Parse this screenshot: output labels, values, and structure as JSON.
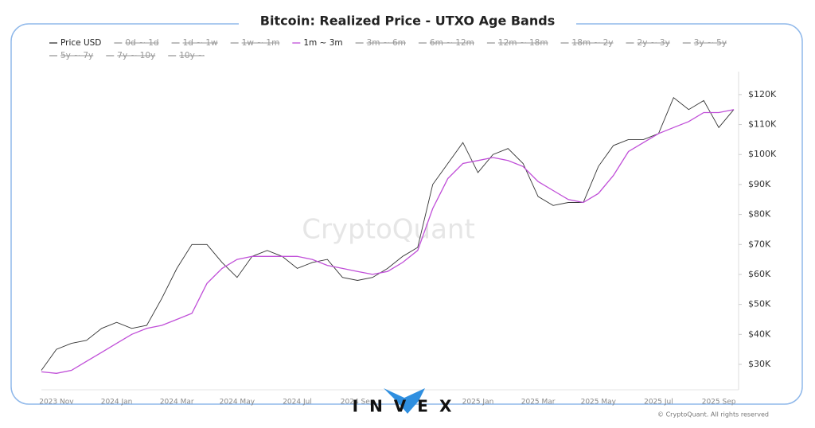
{
  "chart_data": {
    "type": "line",
    "title": "Bitcoin: Realized Price - UTXO Age Bands",
    "watermark": "CryptoQuant",
    "logo": "INVEX",
    "copyright": "© CryptoQuant. All rights reserved",
    "categories": [
      null,
      "2023 Nov",
      null,
      null,
      null,
      "2024 Jan",
      null,
      null,
      null,
      "2024 Mar",
      null,
      null,
      null,
      "2024 May",
      null,
      null,
      null,
      "2024 Jul",
      null,
      null,
      null,
      "2024 Sep",
      null,
      null,
      null,
      null,
      null,
      null,
      null,
      "2025 Jan",
      null,
      null,
      null,
      "2025 Mar",
      null,
      null,
      null,
      "2025 May",
      null,
      null,
      null,
      "2025 Jul",
      null,
      null,
      null,
      "2025 Sep",
      null
    ],
    "series": [
      {
        "name": "Price USD",
        "color": "#333333",
        "visible": true,
        "values": [
          28000,
          35000,
          37000,
          38000,
          42000,
          44000,
          42000,
          43000,
          52000,
          62000,
          70000,
          70000,
          64000,
          59000,
          66000,
          68000,
          66000,
          62000,
          64000,
          65000,
          59000,
          58000,
          59000,
          62000,
          66000,
          69000,
          90000,
          97000,
          104000,
          94000,
          100000,
          102000,
          97000,
          86000,
          83000,
          84000,
          84000,
          96000,
          103000,
          105000,
          105000,
          107000,
          119000,
          115000,
          118000,
          109000,
          115000
        ]
      },
      {
        "name": "0d ~ 1d",
        "color": "#999999",
        "visible": false
      },
      {
        "name": "1d ~ 1w",
        "color": "#999999",
        "visible": false
      },
      {
        "name": "1w ~ 1m",
        "color": "#999999",
        "visible": false
      },
      {
        "name": "1m ~ 3m",
        "color": "#c04fd8",
        "visible": true,
        "values": [
          27500,
          27000,
          28000,
          31000,
          34000,
          37000,
          40000,
          42000,
          43000,
          45000,
          47000,
          57000,
          62000,
          65000,
          66000,
          66000,
          66000,
          66000,
          65000,
          63000,
          62000,
          61000,
          60000,
          61000,
          64000,
          68000,
          82000,
          92000,
          97000,
          98000,
          99000,
          98000,
          96000,
          91000,
          88000,
          85000,
          84000,
          87000,
          93000,
          101000,
          104000,
          107000,
          109000,
          111000,
          114000,
          114000,
          115000
        ]
      },
      {
        "name": "3m ~ 6m",
        "color": "#999999",
        "visible": false
      },
      {
        "name": "6m ~ 12m",
        "color": "#999999",
        "visible": false
      },
      {
        "name": "12m ~ 18m",
        "color": "#999999",
        "visible": false
      },
      {
        "name": "18m ~ 2y",
        "color": "#999999",
        "visible": false
      },
      {
        "name": "2y ~ 3y",
        "color": "#999999",
        "visible": false
      },
      {
        "name": "3y ~ 5y",
        "color": "#999999",
        "visible": false
      },
      {
        "name": "5y ~ 7y",
        "color": "#999999",
        "visible": false
      },
      {
        "name": "7y ~ 10y",
        "color": "#999999",
        "visible": false
      },
      {
        "name": "10y ~",
        "color": "#999999",
        "visible": false
      }
    ],
    "ylim": [
      21500,
      128200
    ],
    "yticks": [
      {
        "value": 30000,
        "label": "$30K"
      },
      {
        "value": 40000,
        "label": "$40K"
      },
      {
        "value": 50000,
        "label": "$50K"
      },
      {
        "value": 60000,
        "label": "$60K"
      },
      {
        "value": 70000,
        "label": "$70K"
      },
      {
        "value": 80000,
        "label": "$80K"
      },
      {
        "value": 90000,
        "label": "$90K"
      },
      {
        "value": 100000,
        "label": "$100K"
      },
      {
        "value": 110000,
        "label": "$110K"
      },
      {
        "value": 120000,
        "label": "$120K"
      }
    ],
    "grid": false
  }
}
